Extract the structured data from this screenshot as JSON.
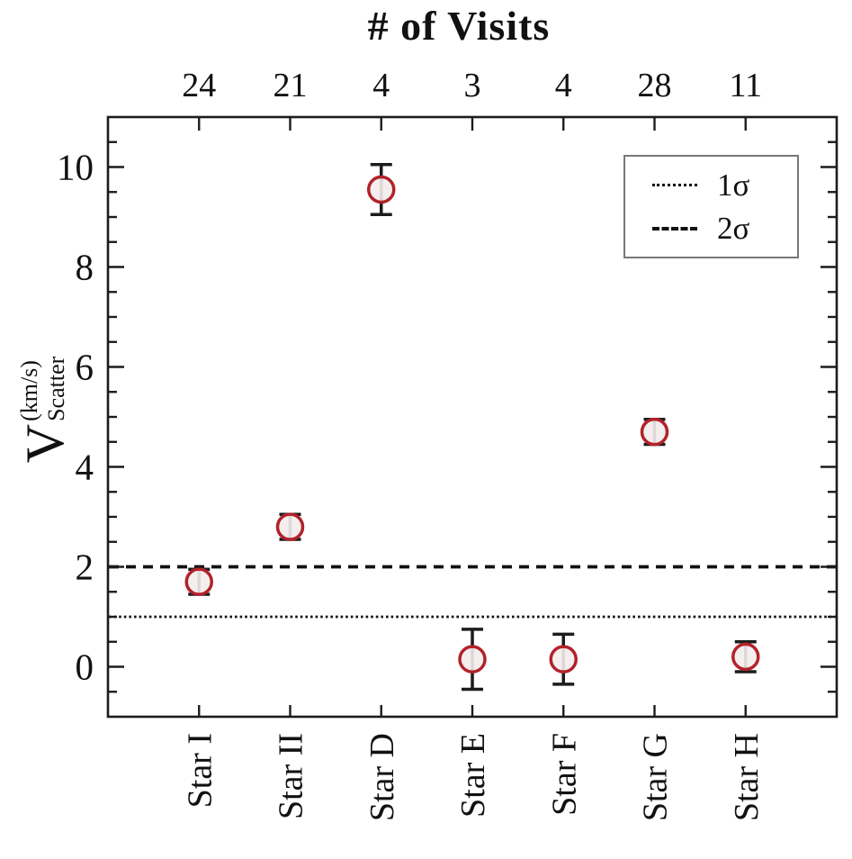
{
  "top_axis": {
    "title": "# of Visits"
  },
  "y_axis": {
    "label_main": "V",
    "label_sup": "(km/s)",
    "label_sub": "Scatter"
  },
  "legend": {
    "items": [
      {
        "style": "dotted",
        "label": "1σ"
      },
      {
        "style": "dashed",
        "label": "2σ"
      }
    ]
  },
  "colors": {
    "marker_stroke": "#b2222a",
    "marker_fill": "#f3ecec",
    "axis": "#1c1c1c",
    "text": "#111111",
    "ref_line": "#111111",
    "legend_border": "#777777"
  },
  "chart_data": {
    "type": "scatter",
    "title": "# of Visits",
    "ylabel": "V_Scatter (km/s)",
    "categories": [
      "Star I",
      "Star II",
      "Star D",
      "Star E",
      "Star F",
      "Star G",
      "Star H"
    ],
    "top_axis_visits": [
      24,
      21,
      4,
      3,
      4,
      28,
      11
    ],
    "series": [
      {
        "name": "V_scatter",
        "values": [
          1.7,
          2.8,
          9.55,
          0.15,
          0.15,
          4.7,
          0.2
        ],
        "errors": [
          0.25,
          0.25,
          0.5,
          0.6,
          0.5,
          0.25,
          0.3
        ]
      }
    ],
    "ylim": [
      -1,
      11
    ],
    "yticks": [
      0,
      2,
      4,
      6,
      8,
      10
    ],
    "minor_tick_step": 0.5,
    "reference_lines": [
      {
        "value": 1,
        "style": "dotted",
        "label": "1σ"
      },
      {
        "value": 2,
        "style": "dashed",
        "label": "2σ"
      }
    ],
    "legend_position": "top-right",
    "grid": false,
    "marker": "open-circle"
  }
}
